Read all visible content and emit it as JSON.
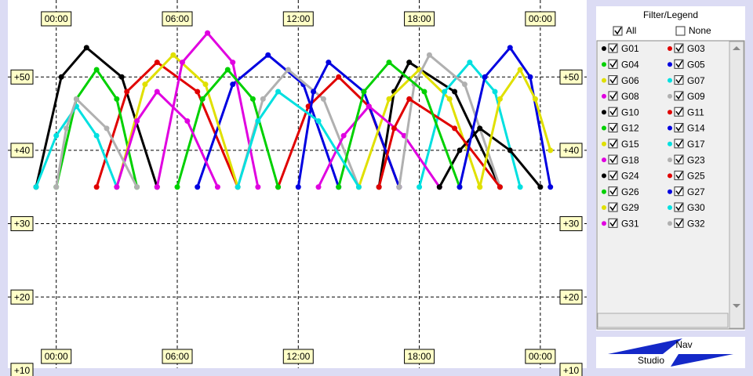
{
  "chart_data": {
    "type": "line",
    "xlim": [
      -2.4,
      26.3
    ],
    "ylim": [
      10.3,
      60.5
    ],
    "xticks": [
      {
        "value": 0,
        "label": "00:00"
      },
      {
        "value": 6,
        "label": "06:00"
      },
      {
        "value": 12,
        "label": "12:00"
      },
      {
        "value": 18,
        "label": "18:00"
      },
      {
        "value": 24,
        "label": "00:00"
      }
    ],
    "yticks": [
      {
        "value": 10,
        "label": "+10"
      },
      {
        "value": 20,
        "label": "+20"
      },
      {
        "value": 30,
        "label": "+30"
      },
      {
        "value": 40,
        "label": "+40"
      },
      {
        "value": 50,
        "label": "+50"
      }
    ],
    "grid": true,
    "series": [
      {
        "name": "G01",
        "color": "#000000",
        "x": [
          -1,
          0.25,
          1.5,
          3.25,
          5
        ],
        "values": [
          35,
          50,
          54,
          50,
          35
        ]
      },
      {
        "name": "G03",
        "color": "#e00000",
        "x": [
          2,
          3.5,
          5,
          7,
          9
        ],
        "values": [
          35,
          48,
          52,
          48,
          35
        ]
      },
      {
        "name": "G04",
        "color": "#00d000",
        "x": [
          0,
          1,
          2,
          3,
          4
        ],
        "values": [
          35,
          47,
          51,
          47,
          35
        ]
      },
      {
        "name": "G05",
        "color": "#0000e0",
        "x": [
          7,
          8.75,
          10.5,
          12.25,
          14
        ],
        "values": [
          35,
          49,
          53,
          49,
          35
        ]
      },
      {
        "name": "G06",
        "color": "#e0e000",
        "x": [
          3,
          4.4,
          5.8,
          7.4,
          9
        ],
        "values": [
          35,
          49,
          53,
          49,
          35
        ]
      },
      {
        "name": "G07",
        "color": "#00e0e0",
        "x": [
          -1,
          0,
          1,
          2,
          3
        ],
        "values": [
          35,
          42,
          46,
          42,
          35
        ]
      },
      {
        "name": "G08",
        "color": "#e000e0",
        "x": [
          5,
          6.25,
          7.5,
          8.75,
          10
        ],
        "values": [
          35,
          52,
          56,
          52,
          35
        ]
      },
      {
        "name": "G09",
        "color": "#b0b0b0",
        "x": [
          9,
          10.25,
          11.5,
          13.25,
          15
        ],
        "values": [
          35,
          47,
          51,
          47,
          35
        ]
      },
      {
        "name": "G10",
        "color": "#000000",
        "x": [
          16,
          16.75,
          17.5,
          19.75,
          22
        ],
        "values": [
          35,
          48,
          52,
          48,
          35
        ]
      },
      {
        "name": "G11",
        "color": "#e00000",
        "x": [
          11,
          12.5,
          14,
          15.5,
          17
        ],
        "values": [
          35,
          46,
          50,
          46,
          35
        ]
      },
      {
        "name": "G12",
        "color": "#00d000",
        "x": [
          6,
          7.25,
          8.5,
          9.75,
          11
        ],
        "values": [
          35,
          47,
          51,
          47,
          35
        ]
      },
      {
        "name": "G14",
        "color": "#0000e0",
        "x": [
          12,
          12.75,
          13.5,
          15.25,
          17
        ],
        "values": [
          35,
          48,
          52,
          48,
          35
        ]
      },
      {
        "name": "G15",
        "color": "#e0e000",
        "x": [
          15,
          16.5,
          18,
          19.5,
          21
        ],
        "values": [
          35,
          47,
          51,
          47,
          35
        ]
      },
      {
        "name": "G17",
        "color": "#00e0e0",
        "x": [
          18,
          19.25,
          20.5,
          21.75,
          23
        ],
        "values": [
          35,
          48,
          52,
          48,
          35
        ]
      },
      {
        "name": "G18",
        "color": "#e000e0",
        "x": [
          13,
          14.25,
          15.5,
          17.25,
          19
        ],
        "values": [
          35,
          42,
          46,
          42,
          35
        ]
      },
      {
        "name": "G23",
        "color": "#b0b0b0",
        "x": [
          17,
          17.75,
          18.5,
          20.25,
          22
        ],
        "values": [
          35,
          49,
          53,
          49,
          35
        ]
      },
      {
        "name": "G24",
        "color": "#000000",
        "x": [
          19,
          20,
          21,
          22.5,
          24
        ],
        "values": [
          35,
          40,
          43,
          40,
          35
        ]
      },
      {
        "name": "G25",
        "color": "#e00000",
        "x": [
          16,
          16.75,
          17.5,
          19.75,
          22
        ],
        "values": [
          35,
          43,
          47,
          43,
          35
        ]
      },
      {
        "name": "G26",
        "color": "#00d000",
        "x": [
          14,
          15.25,
          16.5,
          18.25,
          20
        ],
        "values": [
          35,
          48,
          52,
          48,
          35
        ]
      },
      {
        "name": "G27",
        "color": "#0000e0",
        "x": [
          20,
          21.25,
          22.5,
          23.5,
          24.5
        ],
        "values": [
          35,
          50,
          54,
          50,
          35
        ]
      },
      {
        "name": "G29",
        "color": "#e0e000",
        "x": [
          21,
          22,
          23,
          23.75,
          24.5
        ],
        "values": [
          35,
          47,
          51,
          47,
          40
        ]
      },
      {
        "name": "G30",
        "color": "#00e0e0",
        "x": [
          9,
          10,
          11,
          13,
          15
        ],
        "values": [
          35,
          44,
          48,
          44,
          35
        ]
      },
      {
        "name": "G31",
        "color": "#e000e0",
        "x": [
          3,
          4,
          5,
          6.5,
          8
        ],
        "values": [
          35,
          44,
          48,
          44,
          35
        ]
      },
      {
        "name": "G32",
        "color": "#b0b0b0",
        "x": [
          0,
          0.5,
          1,
          2.5,
          4
        ],
        "values": [
          35,
          43,
          47,
          43,
          35
        ]
      }
    ]
  },
  "panel": {
    "title": "Filter/Legend",
    "all": "All",
    "none": "None"
  },
  "logo": {
    "top": "Nav",
    "bottom": "Studio"
  }
}
